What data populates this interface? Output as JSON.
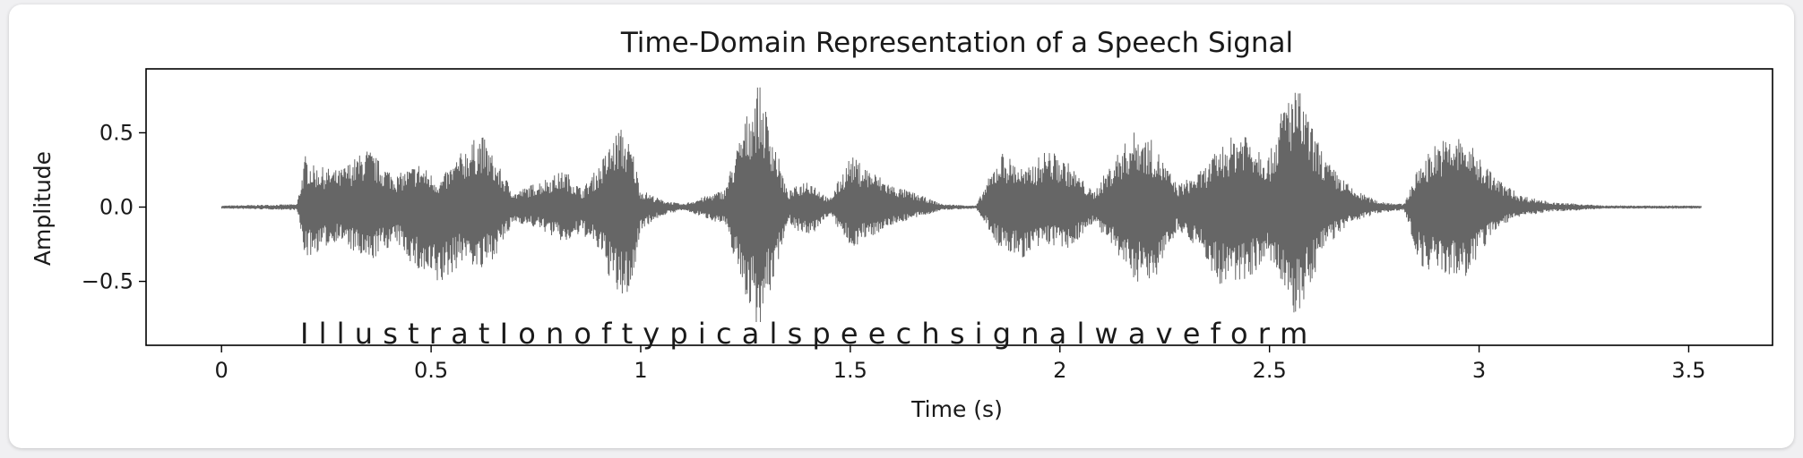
{
  "chart_data": {
    "type": "line",
    "title": "Time-Domain Representation of a Speech Signal",
    "xlabel": "Time (s)",
    "ylabel": "Amplitude",
    "xlim": [
      -0.18,
      3.7
    ],
    "ylim": [
      -0.93,
      0.93
    ],
    "x_ticks": [
      0,
      0.5,
      1,
      1.5,
      2,
      2.5,
      3,
      3.5
    ],
    "x_tick_labels": [
      "0",
      "0.5",
      "1",
      "1.5",
      "2",
      "2.5",
      "3",
      "3.5"
    ],
    "y_ticks": [
      0.5,
      0.0,
      -0.5
    ],
    "y_tick_labels": [
      "0.5",
      "0.0",
      "−0.5"
    ],
    "grid": false,
    "color": "#666666",
    "annotation": "I l l u s t r a t I o n   o f t y   p i c a l s p e e c h s i g n a l w a v e     f o r m",
    "series": [
      {
        "envelope_time_s": [
          0.0,
          0.18,
          0.2,
          0.22,
          0.28,
          0.35,
          0.38,
          0.42,
          0.47,
          0.52,
          0.58,
          0.62,
          0.66,
          0.7,
          0.76,
          0.82,
          0.86,
          0.9,
          0.95,
          0.98,
          1.0,
          1.05,
          1.1,
          1.2,
          1.25,
          1.28,
          1.31,
          1.35,
          1.4,
          1.45,
          1.5,
          1.55,
          1.6,
          1.65,
          1.72,
          1.8,
          1.86,
          1.92,
          1.97,
          2.02,
          2.08,
          2.14,
          2.18,
          2.22,
          2.28,
          2.34,
          2.38,
          2.44,
          2.5,
          2.54,
          2.57,
          2.6,
          2.64,
          2.7,
          2.76,
          2.82,
          2.86,
          2.9,
          2.96,
          3.0,
          3.04,
          3.1,
          3.18,
          3.25,
          3.3,
          3.4,
          3.53
        ],
        "envelope_upper": [
          0.01,
          0.02,
          0.35,
          0.28,
          0.25,
          0.4,
          0.3,
          0.22,
          0.3,
          0.18,
          0.4,
          0.5,
          0.28,
          0.1,
          0.18,
          0.25,
          0.12,
          0.28,
          0.55,
          0.4,
          0.12,
          0.05,
          0.02,
          0.12,
          0.6,
          0.85,
          0.55,
          0.1,
          0.2,
          0.05,
          0.35,
          0.25,
          0.15,
          0.1,
          0.02,
          0.01,
          0.38,
          0.25,
          0.4,
          0.3,
          0.1,
          0.38,
          0.52,
          0.45,
          0.15,
          0.25,
          0.4,
          0.55,
          0.35,
          0.78,
          0.8,
          0.55,
          0.3,
          0.12,
          0.04,
          0.02,
          0.3,
          0.45,
          0.48,
          0.35,
          0.2,
          0.08,
          0.03,
          0.02,
          0.01,
          0.01,
          0.01
        ],
        "envelope_lower": [
          -0.01,
          -0.02,
          -0.35,
          -0.32,
          -0.22,
          -0.4,
          -0.3,
          -0.25,
          -0.45,
          -0.55,
          -0.35,
          -0.45,
          -0.3,
          -0.1,
          -0.15,
          -0.25,
          -0.18,
          -0.3,
          -0.65,
          -0.55,
          -0.15,
          -0.06,
          -0.02,
          -0.12,
          -0.6,
          -0.82,
          -0.58,
          -0.1,
          -0.22,
          -0.05,
          -0.28,
          -0.2,
          -0.12,
          -0.08,
          -0.02,
          -0.01,
          -0.3,
          -0.35,
          -0.25,
          -0.3,
          -0.1,
          -0.35,
          -0.5,
          -0.52,
          -0.15,
          -0.3,
          -0.55,
          -0.5,
          -0.35,
          -0.65,
          -0.78,
          -0.5,
          -0.25,
          -0.1,
          -0.04,
          -0.02,
          -0.4,
          -0.45,
          -0.5,
          -0.35,
          -0.15,
          -0.06,
          -0.03,
          -0.02,
          -0.01,
          -0.01,
          -0.01
        ]
      }
    ]
  }
}
